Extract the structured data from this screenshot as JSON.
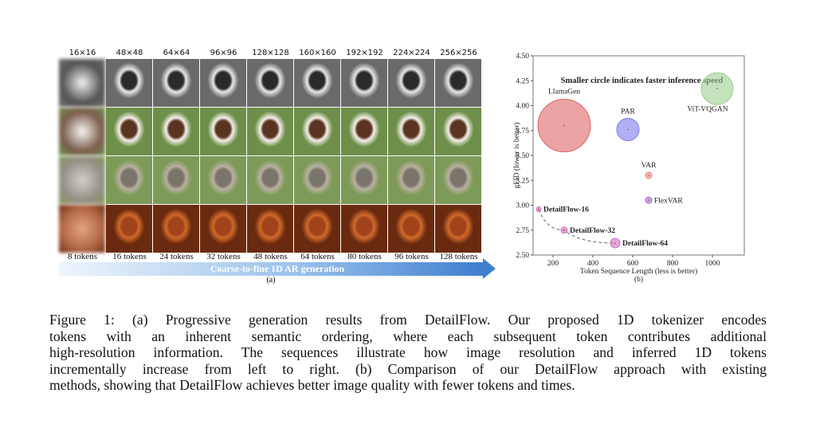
{
  "panel_a": {
    "resolutions": [
      "16×16",
      "48×48",
      "64×64",
      "96×96",
      "128×128",
      "160×160",
      "192×192",
      "224×224",
      "256×256"
    ],
    "tokens": [
      "8 tokens",
      "16 tokens",
      "24 tokens",
      "32 tokens",
      "48 tokens",
      "64 tokens",
      "80 tokens",
      "96 tokens",
      "128 tokens"
    ],
    "arrow_label": "Coarse-to-fine 1D AR generation",
    "label": "(a)"
  },
  "chart_data": {
    "type": "bubble",
    "annotation": "Smaller circle indicates faster inference speed",
    "xlabel": "Token Sequence Length (less is better)",
    "ylabel": "gFID (lower is better)",
    "label": "(b)",
    "points": [
      {
        "name": "LlamaGen",
        "x": 256,
        "y": 3.8,
        "size": 33,
        "color": "#e06666",
        "bold": false
      },
      {
        "name": "PAR",
        "x": 576,
        "y": 3.76,
        "size": 14,
        "color": "#7c7cec",
        "bold": false
      },
      {
        "name": "ViT-VQGAN",
        "x": 1024,
        "y": 4.17,
        "size": 20,
        "color": "#9ccf8e",
        "bold": false
      },
      {
        "name": "VAR",
        "x": 680,
        "y": 3.3,
        "size": 4,
        "color": "#e88080",
        "bold": false
      },
      {
        "name": "FlexVAR",
        "x": 680,
        "y": 3.05,
        "size": 4,
        "color": "#a070c8",
        "bold": false
      },
      {
        "name": "DetailFlow-16",
        "x": 128,
        "y": 2.96,
        "size": 3,
        "color": "#d070c0",
        "bold": true
      },
      {
        "name": "DetailFlow-32",
        "x": 256,
        "y": 2.75,
        "size": 4,
        "color": "#d070c0",
        "bold": true
      },
      {
        "name": "DetailFlow-64",
        "x": 512,
        "y": 2.62,
        "size": 6,
        "color": "#d070c0",
        "bold": true
      }
    ],
    "xlim": [
      100,
      1160
    ],
    "ylim": [
      2.5,
      4.5
    ],
    "xticks": [
      200,
      400,
      600,
      800,
      1000
    ],
    "yticks": [
      {
        "value": 2.5,
        "label": "2.50"
      },
      {
        "value": 2.75,
        "label": "2.75"
      },
      {
        "value": 3.0,
        "label": "3.00"
      },
      {
        "value": 3.25,
        "label": "3.25"
      },
      {
        "value": 3.5,
        "label": "3.50"
      },
      {
        "value": 3.75,
        "label": "3.75"
      },
      {
        "value": 4.0,
        "label": "4.00"
      },
      {
        "value": 4.25,
        "label": "4.25"
      },
      {
        "value": 4.5,
        "label": "4.50"
      }
    ],
    "annotation_color": "#e8603a"
  },
  "caption": {
    "lines": [
      "Figure 1: (a) Progressive generation results from DetailFlow. Our proposed 1D tokenizer encodes",
      "tokens with an inherent semantic ordering, where each subsequent token contributes additional",
      "high-resolution information. The sequences illustrate how image resolution and inferred 1D tokens",
      "incrementally increase from left to right. (b) Comparison of our DetailFlow approach with existing",
      "methods, showing that DetailFlow achieves better image quality with fewer tokens and times."
    ]
  }
}
